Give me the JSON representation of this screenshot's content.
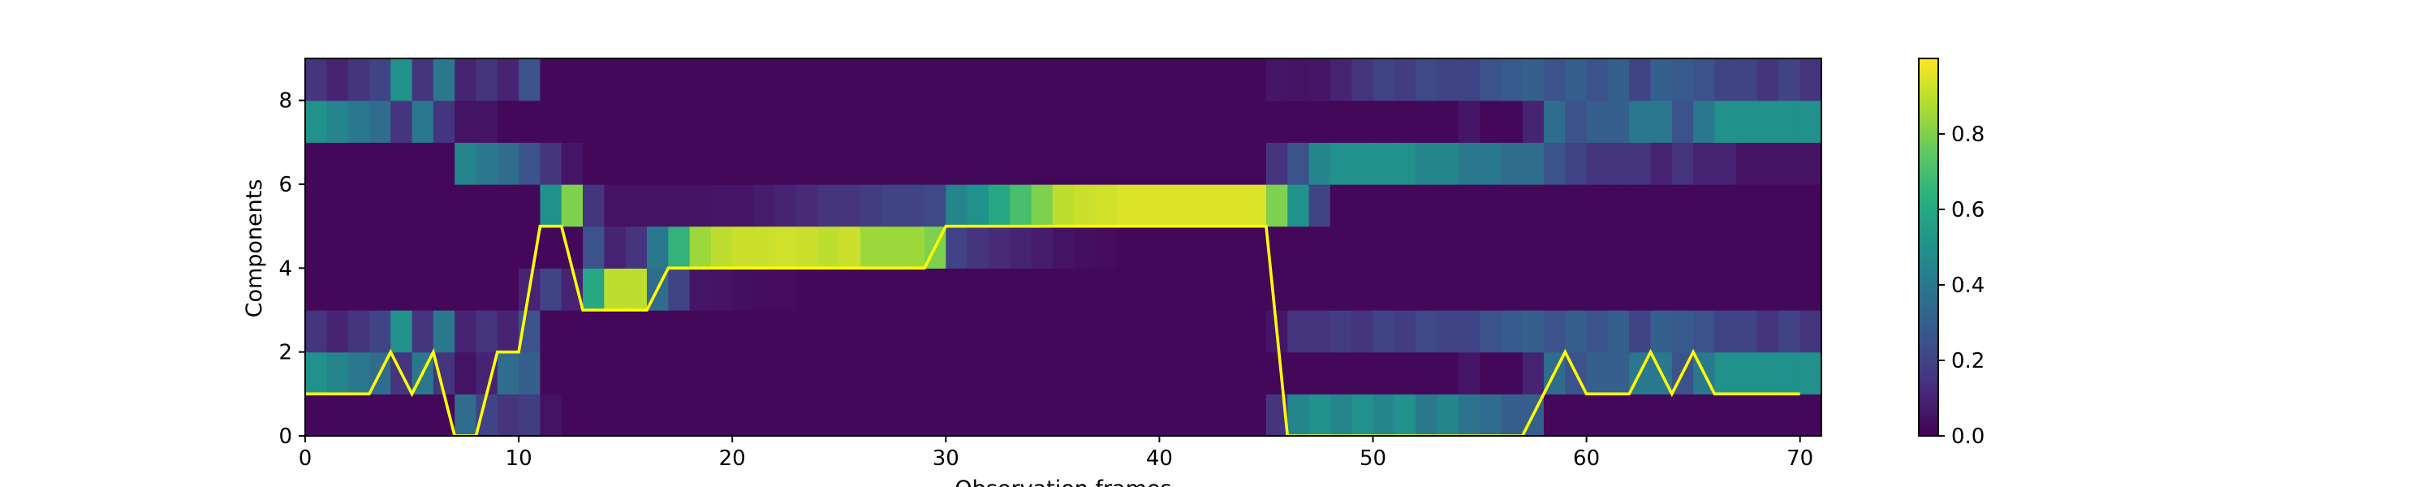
{
  "chart_data": {
    "type": "heatmap",
    "xlabel": "Observation frames",
    "ylabel": "Components",
    "x_ticks": [
      0,
      10,
      20,
      30,
      40,
      50,
      60,
      70
    ],
    "y_ticks": [
      0,
      2,
      4,
      6,
      8
    ],
    "xlim": [
      0,
      71
    ],
    "ylim": [
      0,
      9
    ],
    "n_frames": 71,
    "n_components": 9,
    "colormap": "viridis",
    "color_range": [
      0,
      1
    ],
    "colorbar_ticks": [
      "0.0",
      "0.2",
      "0.4",
      "0.6",
      "0.8"
    ],
    "colorbar_tick_values": [
      0,
      0.2,
      0.4,
      0.6,
      0.8
    ],
    "line_color": "#ffff00",
    "line": {
      "x": [
        0,
        1,
        2,
        3,
        4,
        5,
        6,
        7,
        8,
        9,
        10,
        11,
        12,
        13,
        14,
        15,
        16,
        17,
        18,
        19,
        20,
        21,
        22,
        23,
        24,
        25,
        26,
        27,
        28,
        29,
        30,
        31,
        32,
        33,
        34,
        35,
        36,
        37,
        38,
        39,
        40,
        41,
        42,
        43,
        44,
        45,
        46,
        47,
        48,
        49,
        50,
        51,
        52,
        53,
        54,
        55,
        56,
        57,
        58,
        59,
        60,
        61,
        62,
        63,
        64,
        65,
        66,
        67,
        68,
        69,
        70
      ],
      "y": [
        1,
        1,
        1,
        1,
        2,
        1,
        2,
        0,
        0,
        2,
        2,
        5,
        5,
        3,
        3,
        3,
        3,
        4,
        4,
        4,
        4,
        4,
        4,
        4,
        4,
        4,
        4,
        4,
        4,
        4,
        5,
        5,
        5,
        5,
        5,
        5,
        5,
        5,
        5,
        5,
        5,
        5,
        5,
        5,
        5,
        5,
        0,
        0,
        0,
        0,
        0,
        0,
        0,
        0,
        0,
        0,
        0,
        0,
        1,
        2,
        1,
        1,
        1,
        2,
        1,
        2,
        1,
        1,
        1,
        1,
        1
      ]
    },
    "heatmap_rows": [
      [
        0.02,
        0.02,
        0.02,
        0.02,
        0.02,
        0.02,
        0.02,
        0.35,
        0.2,
        0.15,
        0.18,
        0.05,
        0.02,
        0.02,
        0.02,
        0.02,
        0.02,
        0.02,
        0.02,
        0.02,
        0.02,
        0.02,
        0.02,
        0.02,
        0.02,
        0.02,
        0.02,
        0.02,
        0.02,
        0.02,
        0.02,
        0.02,
        0.02,
        0.02,
        0.02,
        0.02,
        0.02,
        0.02,
        0.02,
        0.02,
        0.02,
        0.02,
        0.02,
        0.02,
        0.02,
        0.15,
        0.45,
        0.5,
        0.45,
        0.5,
        0.45,
        0.5,
        0.4,
        0.45,
        0.38,
        0.35,
        0.3,
        0.3,
        0.02,
        0.02,
        0.02,
        0.02,
        0.02,
        0.02,
        0.02,
        0.02,
        0.02,
        0.02,
        0.02,
        0.02,
        0.02
      ],
      [
        0.5,
        0.45,
        0.4,
        0.35,
        0.15,
        0.4,
        0.15,
        0.05,
        0.1,
        0.35,
        0.3,
        0.02,
        0.02,
        0.02,
        0.02,
        0.02,
        0.02,
        0.02,
        0.02,
        0.02,
        0.02,
        0.02,
        0.02,
        0.02,
        0.02,
        0.02,
        0.02,
        0.02,
        0.02,
        0.02,
        0.02,
        0.02,
        0.02,
        0.02,
        0.02,
        0.02,
        0.02,
        0.02,
        0.02,
        0.02,
        0.02,
        0.02,
        0.02,
        0.02,
        0.02,
        0.02,
        0.02,
        0.02,
        0.02,
        0.02,
        0.02,
        0.02,
        0.02,
        0.02,
        0.06,
        0.02,
        0.02,
        0.1,
        0.35,
        0.25,
        0.3,
        0.3,
        0.4,
        0.4,
        0.25,
        0.4,
        0.5,
        0.5,
        0.5,
        0.5,
        0.5
      ],
      [
        0.15,
        0.1,
        0.15,
        0.2,
        0.5,
        0.15,
        0.4,
        0.1,
        0.15,
        0.1,
        0.25,
        0.02,
        0.02,
        0.02,
        0.02,
        0.02,
        0.02,
        0.02,
        0.02,
        0.02,
        0.02,
        0.02,
        0.02,
        0.02,
        0.02,
        0.02,
        0.02,
        0.02,
        0.02,
        0.02,
        0.02,
        0.02,
        0.02,
        0.02,
        0.02,
        0.02,
        0.02,
        0.02,
        0.02,
        0.02,
        0.02,
        0.02,
        0.02,
        0.02,
        0.02,
        0.06,
        0.15,
        0.15,
        0.18,
        0.15,
        0.2,
        0.18,
        0.22,
        0.2,
        0.2,
        0.25,
        0.28,
        0.3,
        0.25,
        0.3,
        0.25,
        0.3,
        0.2,
        0.3,
        0.28,
        0.25,
        0.2,
        0.2,
        0.15,
        0.2,
        0.15
      ],
      [
        0.02,
        0.02,
        0.02,
        0.02,
        0.02,
        0.02,
        0.02,
        0.02,
        0.02,
        0.02,
        0.1,
        0.2,
        0.1,
        0.6,
        0.9,
        0.9,
        0.35,
        0.2,
        0.06,
        0.05,
        0.04,
        0.03,
        0.03,
        0.02,
        0.02,
        0.02,
        0.02,
        0.02,
        0.02,
        0.02,
        0.02,
        0.02,
        0.02,
        0.02,
        0.02,
        0.02,
        0.02,
        0.02,
        0.02,
        0.02,
        0.02,
        0.02,
        0.02,
        0.02,
        0.02,
        0.02,
        0.02,
        0.02,
        0.02,
        0.02,
        0.02,
        0.02,
        0.02,
        0.02,
        0.02,
        0.02,
        0.02,
        0.02,
        0.02,
        0.02,
        0.02,
        0.02,
        0.02,
        0.02,
        0.02,
        0.02,
        0.02,
        0.02,
        0.02,
        0.02,
        0.02
      ],
      [
        0.02,
        0.02,
        0.02,
        0.02,
        0.02,
        0.02,
        0.02,
        0.02,
        0.02,
        0.02,
        0.02,
        0.02,
        0.02,
        0.25,
        0.1,
        0.15,
        0.4,
        0.65,
        0.85,
        0.9,
        0.92,
        0.92,
        0.93,
        0.92,
        0.9,
        0.92,
        0.85,
        0.85,
        0.85,
        0.8,
        0.2,
        0.15,
        0.12,
        0.1,
        0.08,
        0.05,
        0.04,
        0.03,
        0.02,
        0.02,
        0.02,
        0.02,
        0.02,
        0.02,
        0.02,
        0.02,
        0.02,
        0.02,
        0.02,
        0.02,
        0.02,
        0.02,
        0.02,
        0.02,
        0.02,
        0.02,
        0.02,
        0.02,
        0.02,
        0.02,
        0.02,
        0.02,
        0.02,
        0.02,
        0.02,
        0.02,
        0.02,
        0.02,
        0.02,
        0.02,
        0.02
      ],
      [
        0.02,
        0.02,
        0.02,
        0.02,
        0.02,
        0.02,
        0.02,
        0.02,
        0.02,
        0.02,
        0.02,
        0.5,
        0.8,
        0.15,
        0.05,
        0.05,
        0.05,
        0.05,
        0.05,
        0.06,
        0.06,
        0.08,
        0.1,
        0.12,
        0.15,
        0.15,
        0.18,
        0.2,
        0.2,
        0.22,
        0.45,
        0.5,
        0.6,
        0.7,
        0.8,
        0.9,
        0.92,
        0.93,
        0.95,
        0.95,
        0.95,
        0.95,
        0.95,
        0.95,
        0.95,
        0.8,
        0.5,
        0.2,
        0.02,
        0.02,
        0.02,
        0.02,
        0.02,
        0.02,
        0.02,
        0.02,
        0.02,
        0.02,
        0.02,
        0.02,
        0.02,
        0.02,
        0.02,
        0.02,
        0.02,
        0.02,
        0.02,
        0.02,
        0.02,
        0.02,
        0.02
      ],
      [
        0.02,
        0.02,
        0.02,
        0.02,
        0.02,
        0.02,
        0.02,
        0.45,
        0.4,
        0.35,
        0.25,
        0.15,
        0.06,
        0.02,
        0.02,
        0.02,
        0.02,
        0.02,
        0.02,
        0.02,
        0.02,
        0.02,
        0.02,
        0.02,
        0.02,
        0.02,
        0.02,
        0.02,
        0.02,
        0.02,
        0.02,
        0.02,
        0.02,
        0.02,
        0.02,
        0.02,
        0.02,
        0.02,
        0.02,
        0.02,
        0.02,
        0.02,
        0.02,
        0.02,
        0.02,
        0.15,
        0.25,
        0.45,
        0.5,
        0.5,
        0.5,
        0.5,
        0.45,
        0.45,
        0.4,
        0.4,
        0.35,
        0.35,
        0.25,
        0.2,
        0.15,
        0.15,
        0.15,
        0.1,
        0.15,
        0.1,
        0.1,
        0.05,
        0.05,
        0.05,
        0.05
      ],
      [
        0.5,
        0.45,
        0.4,
        0.35,
        0.15,
        0.4,
        0.15,
        0.05,
        0.05,
        0.02,
        0.02,
        0.02,
        0.02,
        0.02,
        0.02,
        0.02,
        0.02,
        0.02,
        0.02,
        0.02,
        0.02,
        0.02,
        0.02,
        0.02,
        0.02,
        0.02,
        0.02,
        0.02,
        0.02,
        0.02,
        0.02,
        0.02,
        0.02,
        0.02,
        0.02,
        0.02,
        0.02,
        0.02,
        0.02,
        0.02,
        0.02,
        0.02,
        0.02,
        0.02,
        0.02,
        0.02,
        0.02,
        0.02,
        0.02,
        0.02,
        0.02,
        0.02,
        0.02,
        0.02,
        0.06,
        0.02,
        0.02,
        0.1,
        0.35,
        0.25,
        0.3,
        0.3,
        0.4,
        0.4,
        0.25,
        0.4,
        0.5,
        0.5,
        0.5,
        0.5,
        0.5
      ],
      [
        0.15,
        0.1,
        0.15,
        0.2,
        0.5,
        0.15,
        0.4,
        0.1,
        0.15,
        0.1,
        0.25,
        0.02,
        0.02,
        0.02,
        0.02,
        0.02,
        0.02,
        0.02,
        0.02,
        0.02,
        0.02,
        0.02,
        0.02,
        0.02,
        0.02,
        0.02,
        0.02,
        0.02,
        0.02,
        0.02,
        0.02,
        0.02,
        0.02,
        0.02,
        0.02,
        0.02,
        0.02,
        0.02,
        0.02,
        0.02,
        0.02,
        0.02,
        0.02,
        0.02,
        0.02,
        0.06,
        0.05,
        0.06,
        0.1,
        0.15,
        0.2,
        0.18,
        0.22,
        0.2,
        0.2,
        0.25,
        0.28,
        0.3,
        0.25,
        0.3,
        0.25,
        0.3,
        0.2,
        0.3,
        0.28,
        0.25,
        0.2,
        0.2,
        0.15,
        0.2,
        0.15
      ]
    ]
  }
}
